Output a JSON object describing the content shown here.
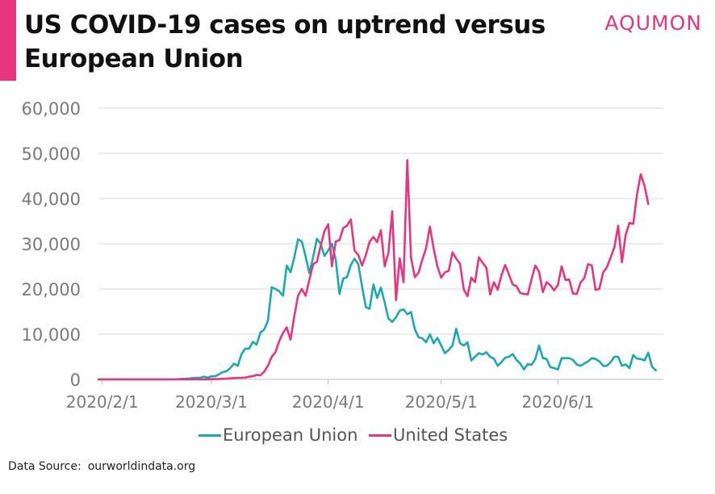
{
  "header": {
    "title": "US COVID-19 cases on uptrend versus European Union",
    "brand": "AQUMON"
  },
  "footer": {
    "source_label": "Data Source:",
    "source_value": "ourworldindata.org"
  },
  "colors": {
    "eu": "#1aa8b5",
    "us": "#e8357f",
    "grid": "#d9d9d9",
    "tick_text": "#7a7a7a"
  },
  "chart_data": {
    "type": "line",
    "title": "US COVID-19 cases on uptrend versus European Union",
    "xlabel": "",
    "ylabel": "",
    "x_start": "2020-01-31",
    "x_end": "2020-06-29",
    "xticks": [
      {
        "date": "2020-02-01",
        "label": "2020/2/1"
      },
      {
        "date": "2020-03-01",
        "label": "2020/3/1"
      },
      {
        "date": "2020-04-01",
        "label": "2020/4/1"
      },
      {
        "date": "2020-05-01",
        "label": "2020/5/1"
      },
      {
        "date": "2020-06-01",
        "label": "2020/6/1"
      }
    ],
    "ylim": [
      0,
      60000
    ],
    "yticks": [
      0,
      10000,
      20000,
      30000,
      40000,
      50000,
      60000
    ],
    "ytick_labels": [
      "0",
      "10,000",
      "20,000",
      "30,000",
      "40,000",
      "50,000",
      "60,000"
    ],
    "grid": "horizontal",
    "legend_position": "bottom",
    "series": [
      {
        "name": "European Union",
        "color": "#1aa8b5",
        "points": [
          [
            "2020-01-31",
            0
          ],
          [
            "2020-02-05",
            0
          ],
          [
            "2020-02-10",
            0
          ],
          [
            "2020-02-15",
            0
          ],
          [
            "2020-02-20",
            0
          ],
          [
            "2020-02-22",
            100
          ],
          [
            "2020-02-24",
            200
          ],
          [
            "2020-02-25",
            300
          ],
          [
            "2020-02-26",
            350
          ],
          [
            "2020-02-27",
            350
          ],
          [
            "2020-02-28",
            600
          ],
          [
            "2020-02-29",
            400
          ],
          [
            "2020-03-01",
            700
          ],
          [
            "2020-03-02",
            700
          ],
          [
            "2020-03-03",
            1100
          ],
          [
            "2020-03-04",
            1600
          ],
          [
            "2020-03-05",
            1800
          ],
          [
            "2020-03-06",
            2500
          ],
          [
            "2020-03-07",
            3500
          ],
          [
            "2020-03-08",
            3000
          ],
          [
            "2020-03-09",
            5600
          ],
          [
            "2020-03-10",
            6800
          ],
          [
            "2020-03-11",
            6800
          ],
          [
            "2020-03-12",
            8300
          ],
          [
            "2020-03-13",
            7700
          ],
          [
            "2020-03-14",
            10400
          ],
          [
            "2020-03-15",
            11000
          ],
          [
            "2020-03-16",
            13000
          ],
          [
            "2020-03-17",
            20400
          ],
          [
            "2020-03-18",
            20000
          ],
          [
            "2020-03-19",
            19500
          ],
          [
            "2020-03-20",
            18500
          ],
          [
            "2020-03-21",
            25200
          ],
          [
            "2020-03-22",
            23700
          ],
          [
            "2020-03-23",
            27000
          ],
          [
            "2020-03-24",
            31000
          ],
          [
            "2020-03-25",
            30500
          ],
          [
            "2020-03-26",
            27200
          ],
          [
            "2020-03-27",
            23500
          ],
          [
            "2020-03-28",
            27000
          ],
          [
            "2020-03-29",
            31100
          ],
          [
            "2020-03-30",
            30000
          ],
          [
            "2020-03-31",
            27300
          ],
          [
            "2020-04-01",
            28500
          ],
          [
            "2020-04-02",
            30000
          ],
          [
            "2020-04-03",
            26500
          ],
          [
            "2020-04-04",
            18900
          ],
          [
            "2020-04-05",
            22300
          ],
          [
            "2020-04-06",
            22600
          ],
          [
            "2020-04-07",
            25300
          ],
          [
            "2020-04-08",
            26700
          ],
          [
            "2020-04-09",
            25500
          ],
          [
            "2020-04-10",
            20500
          ],
          [
            "2020-04-11",
            16000
          ],
          [
            "2020-04-12",
            15600
          ],
          [
            "2020-04-13",
            21000
          ],
          [
            "2020-04-14",
            18000
          ],
          [
            "2020-04-15",
            20300
          ],
          [
            "2020-04-16",
            17000
          ],
          [
            "2020-04-17",
            13500
          ],
          [
            "2020-04-18",
            12700
          ],
          [
            "2020-04-19",
            13700
          ],
          [
            "2020-04-20",
            15200
          ],
          [
            "2020-04-21",
            15500
          ],
          [
            "2020-04-22",
            14400
          ],
          [
            "2020-04-23",
            14900
          ],
          [
            "2020-04-24",
            11100
          ],
          [
            "2020-04-25",
            9300
          ],
          [
            "2020-04-26",
            9100
          ],
          [
            "2020-04-27",
            8200
          ],
          [
            "2020-04-28",
            10000
          ],
          [
            "2020-04-29",
            8000
          ],
          [
            "2020-04-30",
            9200
          ],
          [
            "2020-05-01",
            7500
          ],
          [
            "2020-05-02",
            5800
          ],
          [
            "2020-05-03",
            6500
          ],
          [
            "2020-05-04",
            7500
          ],
          [
            "2020-05-05",
            11200
          ],
          [
            "2020-05-06",
            8000
          ],
          [
            "2020-05-07",
            7500
          ],
          [
            "2020-05-08",
            8200
          ],
          [
            "2020-05-09",
            4200
          ],
          [
            "2020-05-10",
            5000
          ],
          [
            "2020-05-11",
            5800
          ],
          [
            "2020-05-12",
            5500
          ],
          [
            "2020-05-13",
            6000
          ],
          [
            "2020-05-14",
            5000
          ],
          [
            "2020-05-15",
            4600
          ],
          [
            "2020-05-16",
            3000
          ],
          [
            "2020-05-17",
            3800
          ],
          [
            "2020-05-18",
            4800
          ],
          [
            "2020-05-19",
            5000
          ],
          [
            "2020-05-20",
            5600
          ],
          [
            "2020-05-21",
            4300
          ],
          [
            "2020-05-22",
            3500
          ],
          [
            "2020-05-23",
            2200
          ],
          [
            "2020-05-24",
            3400
          ],
          [
            "2020-05-25",
            3200
          ],
          [
            "2020-05-26",
            4500
          ],
          [
            "2020-05-27",
            7500
          ],
          [
            "2020-05-28",
            4700
          ],
          [
            "2020-05-29",
            4500
          ],
          [
            "2020-05-30",
            2700
          ],
          [
            "2020-05-31",
            2500
          ],
          [
            "2020-06-01",
            2200
          ],
          [
            "2020-06-02",
            4700
          ],
          [
            "2020-06-03",
            4700
          ],
          [
            "2020-06-04",
            4700
          ],
          [
            "2020-06-05",
            4300
          ],
          [
            "2020-06-06",
            3300
          ],
          [
            "2020-06-07",
            3000
          ],
          [
            "2020-06-08",
            3500
          ],
          [
            "2020-06-09",
            4000
          ],
          [
            "2020-06-10",
            4700
          ],
          [
            "2020-06-11",
            4500
          ],
          [
            "2020-06-12",
            4000
          ],
          [
            "2020-06-13",
            3000
          ],
          [
            "2020-06-14",
            3000
          ],
          [
            "2020-06-15",
            3800
          ],
          [
            "2020-06-16",
            5000
          ],
          [
            "2020-06-17",
            5000
          ],
          [
            "2020-06-18",
            3000
          ],
          [
            "2020-06-19",
            3300
          ],
          [
            "2020-06-20",
            2500
          ],
          [
            "2020-06-21",
            5400
          ],
          [
            "2020-06-22",
            4600
          ],
          [
            "2020-06-23",
            4500
          ],
          [
            "2020-06-24",
            4200
          ],
          [
            "2020-06-25",
            5900
          ],
          [
            "2020-06-26",
            2800
          ],
          [
            "2020-06-27",
            2000
          ]
        ]
      },
      {
        "name": "United States",
        "color": "#e8357f",
        "points": [
          [
            "2020-01-31",
            0
          ],
          [
            "2020-02-10",
            0
          ],
          [
            "2020-02-20",
            0
          ],
          [
            "2020-02-28",
            0
          ],
          [
            "2020-03-01",
            50
          ],
          [
            "2020-03-03",
            100
          ],
          [
            "2020-03-05",
            150
          ],
          [
            "2020-03-07",
            300
          ],
          [
            "2020-03-09",
            350
          ],
          [
            "2020-03-10",
            400
          ],
          [
            "2020-03-11",
            600
          ],
          [
            "2020-03-12",
            700
          ],
          [
            "2020-03-13",
            1000
          ],
          [
            "2020-03-14",
            900
          ],
          [
            "2020-03-15",
            1700
          ],
          [
            "2020-03-16",
            3000
          ],
          [
            "2020-03-17",
            5000
          ],
          [
            "2020-03-18",
            6000
          ],
          [
            "2020-03-19",
            8500
          ],
          [
            "2020-03-20",
            10300
          ],
          [
            "2020-03-21",
            11500
          ],
          [
            "2020-03-22",
            8800
          ],
          [
            "2020-03-23",
            14000
          ],
          [
            "2020-03-24",
            18500
          ],
          [
            "2020-03-25",
            20000
          ],
          [
            "2020-03-26",
            18500
          ],
          [
            "2020-03-27",
            22000
          ],
          [
            "2020-03-28",
            25500
          ],
          [
            "2020-03-29",
            26000
          ],
          [
            "2020-03-30",
            29500
          ],
          [
            "2020-03-31",
            32800
          ],
          [
            "2020-04-01",
            34300
          ],
          [
            "2020-04-02",
            25000
          ],
          [
            "2020-04-03",
            30500
          ],
          [
            "2020-04-04",
            30800
          ],
          [
            "2020-04-05",
            33500
          ],
          [
            "2020-04-06",
            34000
          ],
          [
            "2020-04-07",
            35400
          ],
          [
            "2020-04-08",
            28500
          ],
          [
            "2020-04-09",
            27500
          ],
          [
            "2020-04-10",
            25200
          ],
          [
            "2020-04-11",
            27500
          ],
          [
            "2020-04-12",
            30500
          ],
          [
            "2020-04-13",
            31500
          ],
          [
            "2020-04-14",
            30400
          ],
          [
            "2020-04-15",
            33000
          ],
          [
            "2020-04-16",
            25000
          ],
          [
            "2020-04-17",
            28000
          ],
          [
            "2020-04-18",
            37200
          ],
          [
            "2020-04-19",
            17500
          ],
          [
            "2020-04-20",
            26800
          ],
          [
            "2020-04-21",
            21500
          ],
          [
            "2020-04-22",
            48500
          ],
          [
            "2020-04-23",
            27000
          ],
          [
            "2020-04-24",
            22600
          ],
          [
            "2020-04-25",
            23600
          ],
          [
            "2020-04-26",
            26500
          ],
          [
            "2020-04-27",
            29000
          ],
          [
            "2020-04-28",
            33800
          ],
          [
            "2020-04-29",
            29000
          ],
          [
            "2020-04-30",
            25000
          ],
          [
            "2020-05-01",
            22500
          ],
          [
            "2020-05-02",
            23700
          ],
          [
            "2020-05-03",
            24000
          ],
          [
            "2020-05-04",
            28100
          ],
          [
            "2020-05-05",
            26700
          ],
          [
            "2020-05-06",
            25600
          ],
          [
            "2020-05-07",
            19900
          ],
          [
            "2020-05-08",
            18400
          ],
          [
            "2020-05-09",
            22500
          ],
          [
            "2020-05-10",
            21500
          ],
          [
            "2020-05-11",
            27000
          ],
          [
            "2020-05-12",
            25800
          ],
          [
            "2020-05-13",
            24700
          ],
          [
            "2020-05-14",
            18800
          ],
          [
            "2020-05-15",
            21500
          ],
          [
            "2020-05-16",
            19800
          ],
          [
            "2020-05-17",
            23000
          ],
          [
            "2020-05-18",
            25300
          ],
          [
            "2020-05-19",
            23200
          ],
          [
            "2020-05-20",
            21000
          ],
          [
            "2020-05-21",
            20600
          ],
          [
            "2020-05-22",
            19100
          ],
          [
            "2020-05-23",
            18900
          ],
          [
            "2020-05-24",
            18800
          ],
          [
            "2020-05-25",
            22200
          ],
          [
            "2020-05-26",
            25200
          ],
          [
            "2020-05-27",
            23800
          ],
          [
            "2020-05-28",
            19300
          ],
          [
            "2020-05-29",
            21500
          ],
          [
            "2020-05-30",
            20800
          ],
          [
            "2020-05-31",
            19700
          ],
          [
            "2020-06-01",
            20900
          ],
          [
            "2020-06-02",
            25000
          ],
          [
            "2020-06-03",
            22000
          ],
          [
            "2020-06-04",
            22100
          ],
          [
            "2020-06-05",
            19000
          ],
          [
            "2020-06-06",
            18900
          ],
          [
            "2020-06-07",
            21400
          ],
          [
            "2020-06-08",
            22400
          ],
          [
            "2020-06-09",
            25500
          ],
          [
            "2020-06-10",
            25200
          ],
          [
            "2020-06-11",
            19800
          ],
          [
            "2020-06-12",
            20000
          ],
          [
            "2020-06-13",
            23600
          ],
          [
            "2020-06-14",
            24800
          ],
          [
            "2020-06-15",
            27000
          ],
          [
            "2020-06-16",
            29200
          ],
          [
            "2020-06-17",
            34000
          ],
          [
            "2020-06-18",
            25900
          ],
          [
            "2020-06-19",
            32000
          ],
          [
            "2020-06-20",
            34600
          ],
          [
            "2020-06-21",
            34400
          ],
          [
            "2020-06-22",
            40900
          ],
          [
            "2020-06-23",
            45400
          ],
          [
            "2020-06-24",
            42800
          ],
          [
            "2020-06-25",
            38800
          ]
        ]
      }
    ]
  }
}
